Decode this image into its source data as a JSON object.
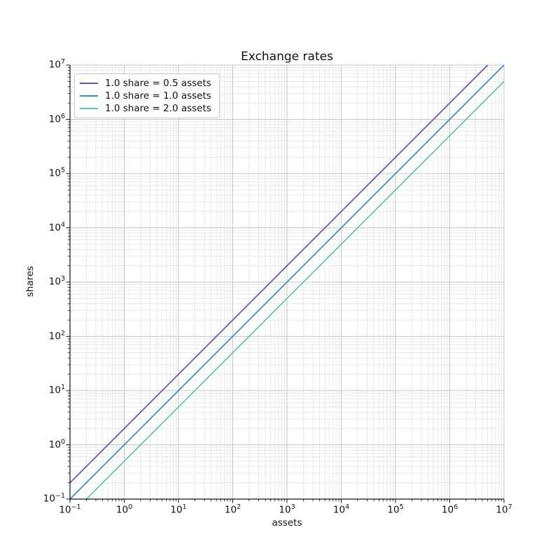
{
  "title": "Exchange rates",
  "axes": {
    "xlabel": "assets",
    "ylabel": "shares"
  },
  "legend": {
    "position": "upper left",
    "items": [
      {
        "label": "1.0 share = 0.5 assets",
        "color": "#5f55a8"
      },
      {
        "label": "1.0 share = 1.0 assets",
        "color": "#3f8ec6"
      },
      {
        "label": "1.0 share = 2.0 assets",
        "color": "#62c69a"
      }
    ]
  },
  "chart_data": {
    "type": "line",
    "title": "Exchange rates",
    "xlabel": "assets",
    "ylabel": "shares",
    "x_scale": "log",
    "y_scale": "log",
    "x_range": [
      0.1,
      10000000
    ],
    "y_range": [
      0.1,
      10000000
    ],
    "tick_exponents": [
      -1,
      0,
      1,
      2,
      3,
      4,
      5,
      6,
      7
    ],
    "grid": "major+minor",
    "legend_position": "upper left",
    "series": [
      {
        "name": "1.0 share = 0.5 assets",
        "color": "#5f55a8",
        "assets_per_share": 0.5,
        "relation": "shares = assets / 0.5",
        "sample_points": [
          {
            "assets": 0.1,
            "shares": 0.2
          },
          {
            "assets": 1000,
            "shares": 2000
          },
          {
            "assets": 5000000,
            "shares": 10000000
          }
        ]
      },
      {
        "name": "1.0 share = 1.0 assets",
        "color": "#3f8ec6",
        "assets_per_share": 1.0,
        "relation": "shares = assets / 1.0",
        "sample_points": [
          {
            "assets": 0.1,
            "shares": 0.1
          },
          {
            "assets": 1000,
            "shares": 1000
          },
          {
            "assets": 10000000,
            "shares": 10000000
          }
        ]
      },
      {
        "name": "1.0 share = 2.0 assets",
        "color": "#62c69a",
        "assets_per_share": 2.0,
        "relation": "shares = assets / 2.0",
        "sample_points": [
          {
            "assets": 0.2,
            "shares": 0.1
          },
          {
            "assets": 1000,
            "shares": 500
          },
          {
            "assets": 10000000,
            "shares": 5000000
          }
        ]
      }
    ],
    "style_colors": {
      "major_grid": "#c6c6c6",
      "minor_grid": "#e5e5e5",
      "spine": "#111111"
    }
  }
}
